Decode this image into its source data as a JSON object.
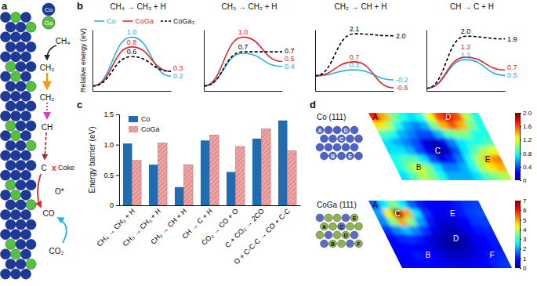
{
  "diagram": {
    "panel_label": "a",
    "atoms": [
      {
        "text": "Co",
        "color": "#1d3a9a"
      },
      {
        "text": "Ga",
        "color": "#55c23c"
      }
    ],
    "steps": [
      "CH₄",
      "CH₃",
      "CH₂",
      "CH",
      "C"
    ],
    "blocked": "x",
    "coke": "Coke",
    "oxygen": "O*",
    "product": "CO",
    "oxidant": "CO₂"
  },
  "chart_data": [
    {
      "type": "line",
      "panel_label": "b",
      "title": "CH₄ → CH₃ + H",
      "ylabel": "Relative energy (eV)",
      "x": [
        0,
        1,
        2
      ],
      "xlim": [
        0,
        2
      ],
      "ylim": [
        -0.1,
        1.15
      ],
      "tick_labels": false,
      "data_labels": true,
      "legend": "top",
      "series": [
        {
          "name": "Co",
          "color": "#2ab0e4",
          "line_style": "solid",
          "values": [
            0,
            1.0,
            0.2
          ],
          "value_labels": [
            null,
            "1.0",
            "0.2"
          ]
        },
        {
          "name": "CoGa",
          "color": "#e3262c",
          "line_style": "solid",
          "values": [
            0,
            0.8,
            0.3
          ],
          "value_labels": [
            null,
            "0.8",
            "0.3"
          ]
        },
        {
          "name": "CoGa₃",
          "color": "#000000",
          "line_style": "dashed",
          "values": [
            0,
            0.6,
            0.3
          ],
          "value_labels": [
            null,
            "0.6",
            null
          ]
        }
      ]
    },
    {
      "type": "line",
      "title": "CH₃ → CH₂ + H",
      "x": [
        0,
        1,
        2
      ],
      "xlim": [
        0,
        2
      ],
      "ylim": [
        -0.1,
        1.15
      ],
      "tick_labels": false,
      "data_labels": true,
      "series": [
        {
          "color": "#2ab0e4",
          "line_style": "solid",
          "values": [
            0,
            0.67,
            0.4
          ],
          "value_labels": [
            null,
            null,
            "0.4"
          ]
        },
        {
          "color": "#e3262c",
          "line_style": "solid",
          "values": [
            0,
            1.0,
            0.5
          ],
          "value_labels": [
            null,
            "1.0",
            "0.5"
          ]
        },
        {
          "color": "#000000",
          "line_style": "dashed",
          "values": [
            0,
            0.7,
            0.7
          ],
          "value_labels": [
            null,
            "0.7",
            "0.7"
          ]
        }
      ]
    },
    {
      "type": "line",
      "title": "CH₂ → CH + H",
      "x": [
        0,
        1,
        2
      ],
      "xlim": [
        0,
        2
      ],
      "ylim": [
        -0.75,
        2.3
      ],
      "tick_labels": false,
      "data_labels": true,
      "series": [
        {
          "color": "#2ab0e4",
          "line_style": "solid",
          "values": [
            0,
            0.3,
            -0.2
          ],
          "value_labels": [
            null,
            "0.3",
            "-0.2"
          ]
        },
        {
          "color": "#e3262c",
          "line_style": "solid",
          "values": [
            0,
            0.7,
            -0.6
          ],
          "value_labels": [
            null,
            "0.7",
            "-0.6"
          ]
        },
        {
          "color": "#000000",
          "line_style": "dashed",
          "values": [
            0,
            2.1,
            2.0
          ],
          "value_labels": [
            null,
            "2.1",
            "2.0"
          ]
        }
      ]
    },
    {
      "type": "line",
      "title": "CH → C + H",
      "x": [
        0,
        1,
        2
      ],
      "xlim": [
        0,
        2
      ],
      "ylim": [
        -0.1,
        2.25
      ],
      "tick_labels": false,
      "data_labels": true,
      "series": [
        {
          "color": "#2ab0e4",
          "line_style": "solid",
          "values": [
            0,
            1.1,
            0.5
          ],
          "value_labels": [
            null,
            "1.1",
            "0.5"
          ]
        },
        {
          "color": "#e3262c",
          "line_style": "solid",
          "values": [
            0,
            1.2,
            0.7
          ],
          "value_labels": [
            null,
            "1.2",
            "0.7"
          ]
        },
        {
          "color": "#000000",
          "line_style": "dashed",
          "values": [
            0,
            2.0,
            1.9
          ],
          "value_labels": [
            null,
            "2.0",
            "1.9"
          ]
        }
      ]
    },
    {
      "type": "bar",
      "panel_label": "c",
      "ylabel": "Energy barrier (eV)",
      "categories": [
        "CH₄ → CH₃ + H",
        "CH₃ → CH₂ + H",
        "CH₂ → CH + H",
        "CH → C + H",
        "CO₂ → CO + O",
        "C + CO₂ → 2CO",
        "O + C-C-C → CO + C-C"
      ],
      "ylim": [
        0,
        1.5
      ],
      "yticks": [
        0,
        0.5,
        {
          "value": 1,
          "label": "1.0"
        },
        1.5
      ],
      "legend": "top-left",
      "series": [
        {
          "name": "Co",
          "color": "#1f6cb0",
          "values": [
            1.02,
            0.67,
            0.3,
            1.07,
            0.55,
            1.1,
            1.4
          ]
        },
        {
          "name": "CoGa",
          "color": "#f5a3a3",
          "values": [
            0.74,
            1.03,
            0.67,
            1.16,
            0.97,
            1.26,
            0.9
          ]
        }
      ]
    },
    {
      "type": "heatmap",
      "panel_label": "d",
      "title": "Co (111)",
      "inset_labels": [
        "A",
        "B",
        "C",
        "D",
        "E"
      ],
      "z": [
        [
          1.7,
          1.4,
          1.0,
          0.8,
          0.7,
          0.8,
          1.2,
          1.6,
          1.8,
          1.6,
          1.1,
          0.8
        ],
        [
          1.3,
          1.1,
          0.8,
          0.6,
          0.5,
          0.6,
          1.0,
          1.4,
          1.6,
          1.4,
          1.0,
          0.8
        ],
        [
          0.9,
          0.8,
          0.6,
          0.5,
          0.4,
          0.4,
          0.6,
          0.9,
          1.0,
          1.0,
          0.8,
          0.8
        ],
        [
          0.7,
          0.6,
          0.5,
          0.4,
          0.2,
          0.1,
          0.2,
          0.5,
          0.7,
          0.8,
          0.8,
          0.9
        ],
        [
          0.7,
          0.7,
          0.6,
          0.4,
          0.2,
          0.0,
          0.1,
          0.4,
          0.7,
          0.9,
          1.1,
          1.2
        ],
        [
          0.8,
          0.9,
          0.9,
          0.7,
          0.4,
          0.2,
          0.3,
          0.5,
          0.8,
          1.1,
          1.4,
          1.5
        ],
        [
          0.8,
          1.0,
          1.2,
          1.0,
          0.7,
          0.5,
          0.5,
          0.6,
          0.8,
          1.1,
          1.3,
          1.4
        ],
        [
          0.7,
          0.9,
          1.1,
          1.0,
          0.8,
          0.6,
          0.6,
          0.6,
          0.7,
          0.9,
          1.0,
          1.1
        ]
      ],
      "annotations": [
        {
          "text": "A",
          "row": 0,
          "col": 0
        },
        {
          "text": "D",
          "row": 0,
          "col": 8
        },
        {
          "text": "C",
          "row": 4,
          "col": 5
        },
        {
          "text": "B",
          "row": 6,
          "col": 2
        },
        {
          "text": "E",
          "row": 5,
          "col": 10
        }
      ],
      "colorbar": {
        "range": [
          0,
          2
        ],
        "ticks": [
          0,
          0.4,
          0.8,
          1.2,
          1.6,
          {
            "value": 2,
            "label": "2.0"
          }
        ]
      }
    },
    {
      "type": "heatmap",
      "title": "CoGa (111)",
      "inset_labels": [
        "A",
        "B",
        "C",
        "D",
        "E",
        "F"
      ],
      "z": [
        [
          1.5,
          2.5,
          3.5,
          2.5,
          1.5,
          1.0,
          0.8,
          0.8,
          0.9,
          1.0,
          1.2,
          1.3
        ],
        [
          2.0,
          4.5,
          7.0,
          5.0,
          2.5,
          1.2,
          0.8,
          0.7,
          0.8,
          1.0,
          1.3,
          1.4
        ],
        [
          1.8,
          3.5,
          5.0,
          3.5,
          2.0,
          1.0,
          0.6,
          0.5,
          0.6,
          0.9,
          1.2,
          1.3
        ],
        [
          1.2,
          1.8,
          2.2,
          1.8,
          1.2,
          0.7,
          0.4,
          0.3,
          0.5,
          0.8,
          1.0,
          1.1
        ],
        [
          0.9,
          1.1,
          1.2,
          1.0,
          0.7,
          0.4,
          0.1,
          0.1,
          0.3,
          0.7,
          0.9,
          1.0
        ],
        [
          0.8,
          0.9,
          0.9,
          0.8,
          0.6,
          0.3,
          0.2,
          0.2,
          0.4,
          0.7,
          0.9,
          1.0
        ],
        [
          0.8,
          0.9,
          1.0,
          0.9,
          0.7,
          0.5,
          0.4,
          0.5,
          0.6,
          0.8,
          1.0,
          1.1
        ],
        [
          0.7,
          0.8,
          0.9,
          0.9,
          0.8,
          0.7,
          0.6,
          0.7,
          0.8,
          0.9,
          1.1,
          1.2
        ]
      ],
      "annotations": [
        {
          "text": "A",
          "row": 0,
          "col": 0
        },
        {
          "text": "C",
          "row": 1,
          "col": 2
        },
        {
          "text": "E",
          "row": 1,
          "col": 8
        },
        {
          "text": "D",
          "row": 4,
          "col": 7
        },
        {
          "text": "B",
          "row": 6,
          "col": 3
        },
        {
          "text": "F",
          "row": 6,
          "col": 10
        }
      ],
      "colorbar": {
        "range": [
          0,
          7
        ],
        "ticks": [
          0,
          1,
          2,
          3,
          4,
          5,
          6,
          7
        ]
      }
    }
  ]
}
